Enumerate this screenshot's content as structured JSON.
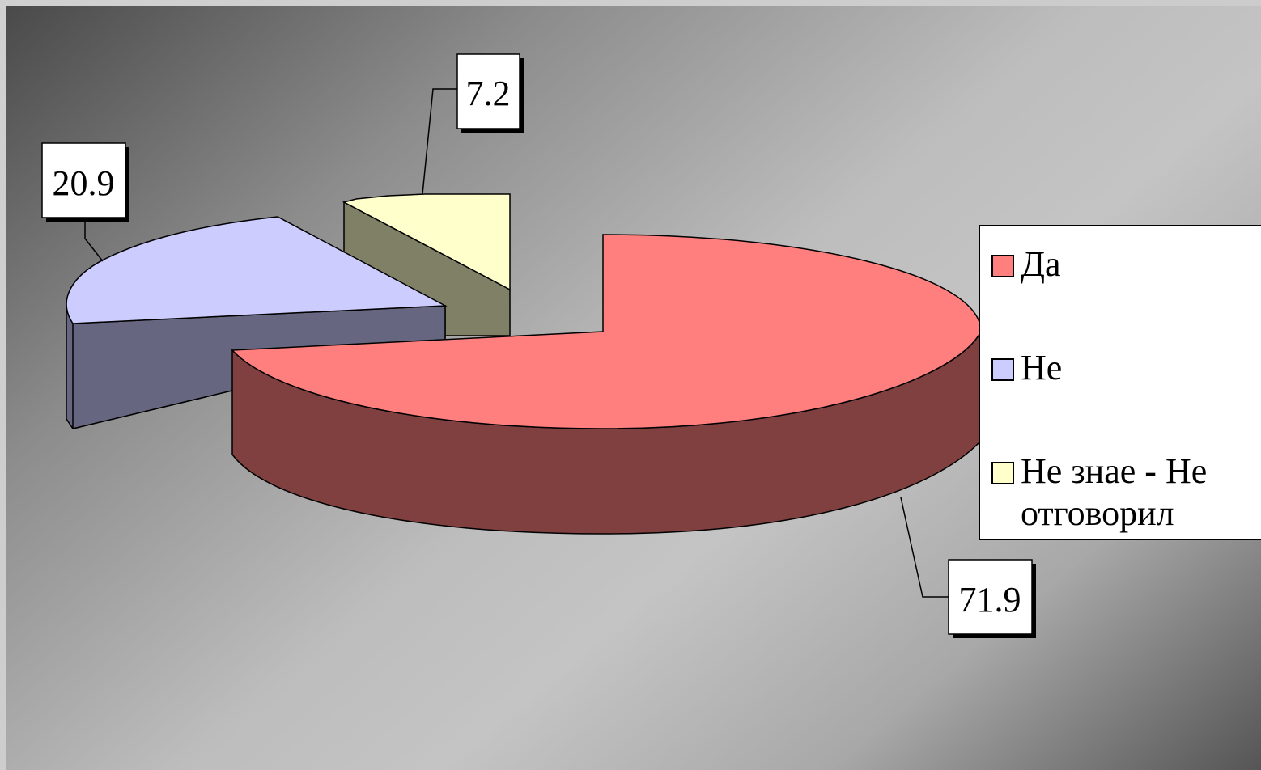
{
  "chart_data": {
    "type": "pie",
    "categories": [
      "Да",
      "Не",
      "Не знае - Не отговорил"
    ],
    "values": [
      71.9,
      20.9,
      7.2
    ],
    "data_labels": [
      "71.9",
      "20.9",
      "7.2"
    ],
    "colors": {
      "Да": {
        "top": "#ff7f7f",
        "side": "#804040"
      },
      "Не": {
        "top": "#ccccff",
        "side": "#666680"
      },
      "Не знае - Не отговорил": {
        "top": "#ffffcc",
        "side": "#808066"
      }
    },
    "legend_position": "right",
    "style": "3d-exploded"
  }
}
